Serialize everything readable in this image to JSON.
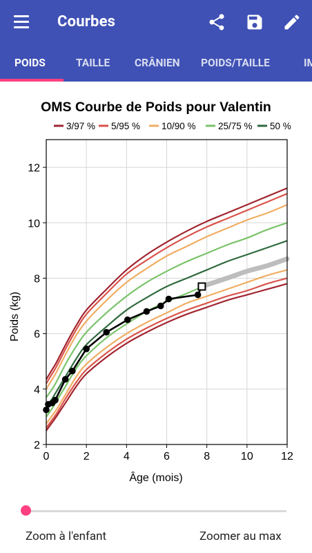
{
  "toolbar": {
    "title": "Courbes",
    "actions": [
      "share-icon",
      "save-icon",
      "edit-icon"
    ]
  },
  "tabs": [
    {
      "label": "POIDS",
      "selected": true
    },
    {
      "label": "TAILLE",
      "selected": false
    },
    {
      "label": "CRÂNIEN",
      "selected": false
    },
    {
      "label": "POIDS/TAILLE",
      "selected": false
    },
    {
      "label": "IM",
      "selected": false
    }
  ],
  "colors": {
    "primary": "#3f51b5",
    "accent": "#ff4081",
    "p3_97": "#a1242f",
    "p5_95": "#d9534a",
    "p10_90": "#f0ad63",
    "p25_75": "#7ac36a",
    "p50": "#2f6a3e",
    "child": "#000000",
    "projection": "#bdbdbd"
  },
  "chart_data": {
    "type": "line",
    "title": "OMS Courbe de Poids pour Valentin",
    "xlabel": "Âge (mois)",
    "ylabel": "Poids (kg)",
    "xlim": [
      0,
      12
    ],
    "ylim": [
      2,
      13
    ],
    "xticks": [
      "0",
      "2",
      "4",
      "6",
      "8",
      "10",
      "12"
    ],
    "yticks": [
      "2",
      "4",
      "6",
      "8",
      "10",
      "12"
    ],
    "grid": true,
    "legend": [
      {
        "label": "3/97 %",
        "color": "#a1242f"
      },
      {
        "label": "5/95 %",
        "color": "#d9534a"
      },
      {
        "label": "10/90 %",
        "color": "#f0ad63"
      },
      {
        "label": "25/75 %",
        "color": "#7ac36a"
      },
      {
        "label": "50 %",
        "color": "#2f6a3e"
      }
    ],
    "legend_position": "top",
    "percentile_x": [
      0,
      0.25,
      0.5,
      1,
      1.5,
      2,
      3,
      4,
      5,
      6,
      7,
      8,
      9,
      10,
      11,
      12
    ],
    "percentiles": [
      {
        "name": "3 %",
        "group": "3/97 %",
        "color": "#a1242f",
        "values": [
          2.5,
          2.75,
          3.0,
          3.55,
          4.1,
          4.55,
          5.15,
          5.65,
          6.05,
          6.4,
          6.7,
          6.95,
          7.2,
          7.4,
          7.6,
          7.8
        ]
      },
      {
        "name": "5 %",
        "group": "5/95 %",
        "color": "#d9534a",
        "values": [
          2.6,
          2.85,
          3.1,
          3.7,
          4.25,
          4.7,
          5.3,
          5.8,
          6.2,
          6.55,
          6.85,
          7.1,
          7.35,
          7.55,
          7.8,
          8.0
        ]
      },
      {
        "name": "10 %",
        "group": "10/90 %",
        "color": "#f0ad63",
        "values": [
          2.75,
          3.0,
          3.25,
          3.85,
          4.45,
          4.9,
          5.5,
          6.0,
          6.4,
          6.75,
          7.1,
          7.35,
          7.6,
          7.85,
          8.1,
          8.3
        ]
      },
      {
        "name": "25 %",
        "group": "25/75 %",
        "color": "#7ac36a",
        "values": [
          3.0,
          3.25,
          3.55,
          4.15,
          4.75,
          5.2,
          5.85,
          6.35,
          6.8,
          7.15,
          7.45,
          7.75,
          8.0,
          8.25,
          8.5,
          8.7
        ]
      },
      {
        "name": "50 %",
        "group": "50 %",
        "color": "#2f6a3e",
        "values": [
          3.35,
          3.6,
          3.9,
          4.5,
          5.1,
          5.6,
          6.25,
          6.85,
          7.3,
          7.7,
          8.0,
          8.3,
          8.6,
          8.85,
          9.1,
          9.35
        ]
      },
      {
        "name": "75 %",
        "group": "25/75 %",
        "color": "#7ac36a",
        "values": [
          3.7,
          3.95,
          4.25,
          4.95,
          5.55,
          6.05,
          6.75,
          7.35,
          7.85,
          8.25,
          8.6,
          8.9,
          9.2,
          9.45,
          9.75,
          10.0
        ]
      },
      {
        "name": "90 %",
        "group": "10/90 %",
        "color": "#f0ad63",
        "values": [
          4.0,
          4.3,
          4.6,
          5.3,
          5.95,
          6.45,
          7.2,
          7.85,
          8.35,
          8.8,
          9.15,
          9.5,
          9.8,
          10.1,
          10.35,
          10.65
        ]
      },
      {
        "name": "95 %",
        "group": "5/95 %",
        "color": "#d9534a",
        "values": [
          4.2,
          4.5,
          4.8,
          5.5,
          6.15,
          6.7,
          7.45,
          8.15,
          8.65,
          9.1,
          9.5,
          9.85,
          10.15,
          10.45,
          10.75,
          11.05
        ]
      },
      {
        "name": "97 %",
        "group": "3/97 %",
        "color": "#a1242f",
        "values": [
          4.35,
          4.65,
          4.95,
          5.65,
          6.3,
          6.85,
          7.6,
          8.3,
          8.85,
          9.3,
          9.7,
          10.05,
          10.35,
          10.65,
          10.95,
          11.25
        ]
      }
    ],
    "child_points": {
      "x": [
        0,
        0.1,
        0.3,
        0.45,
        0.95,
        1.3,
        2.0,
        3.0,
        4.05,
        5.0,
        5.7,
        6.1,
        7.55
      ],
      "y": [
        3.25,
        3.45,
        3.5,
        3.6,
        4.35,
        4.65,
        5.45,
        6.05,
        6.5,
        6.8,
        7.0,
        7.25,
        7.4
      ]
    },
    "latest_point": {
      "x": 7.75,
      "y": 7.7
    },
    "projection": {
      "x": [
        7.75,
        9,
        10,
        11,
        12
      ],
      "y": [
        7.7,
        8.0,
        8.25,
        8.45,
        8.7
      ]
    }
  },
  "zoom": {
    "left_label": "Zoom à l'enfant",
    "right_label": "Zoomer au max",
    "value": 0
  }
}
